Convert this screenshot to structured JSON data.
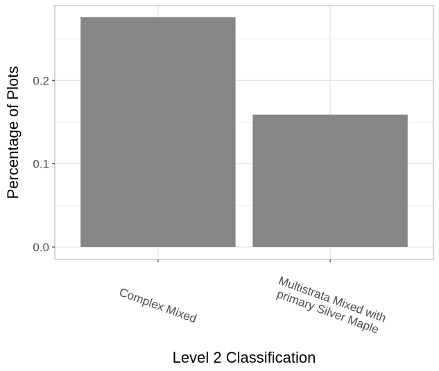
{
  "chart_data": {
    "type": "bar",
    "title": "",
    "xlabel": "Level 2 Classification",
    "ylabel": "Percentage of Plots",
    "categories": [
      [
        "Complex Mixed"
      ],
      [
        "Multistrata Mixed with",
        "primary Silver Maple"
      ]
    ],
    "values": [
      0.276,
      0.159
    ],
    "ylim": [
      -0.015,
      0.29
    ],
    "yticks": [
      0.0,
      0.1,
      0.2
    ],
    "ytick_labels": [
      "0.0",
      "0.1",
      "0.2"
    ],
    "grid": true,
    "legend": "none",
    "colors": {
      "bar": "#868686",
      "grid": "#e0e0e0",
      "panel_border": "#b3b3b3",
      "tick": "#333333"
    }
  }
}
